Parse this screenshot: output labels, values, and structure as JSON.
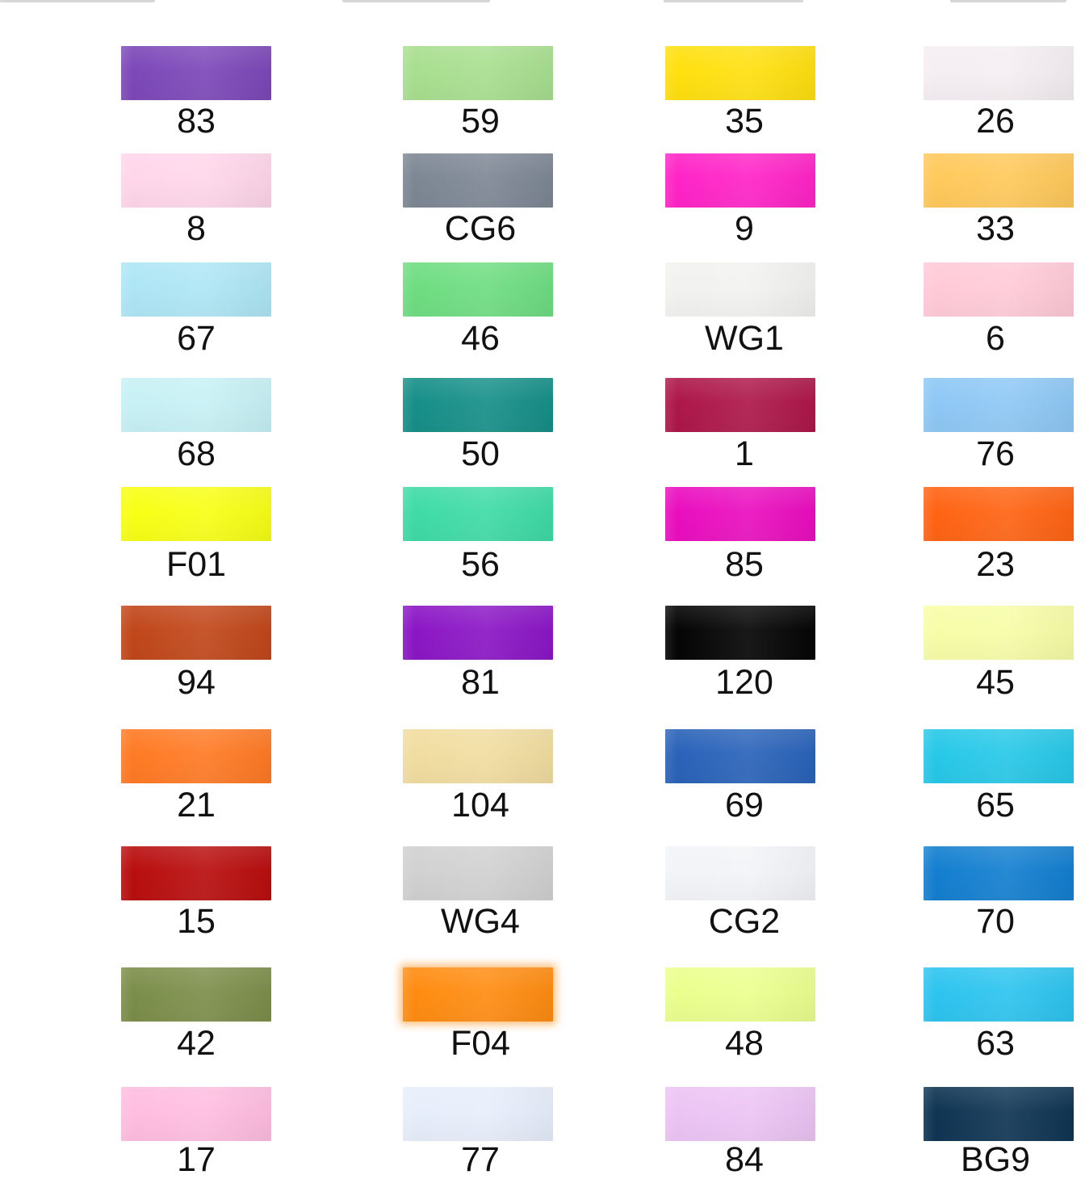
{
  "chart_data": {
    "type": "table",
    "columns": 4,
    "rows": 10,
    "swatches": [
      {
        "code": "83",
        "color": "#7c48b8"
      },
      {
        "code": "59",
        "color": "#a8df8f"
      },
      {
        "code": "35",
        "color": "#ffe00f"
      },
      {
        "code": "26",
        "color": "#f5eef2"
      },
      {
        "code": "8",
        "color": "#ffd6ea"
      },
      {
        "code": "CG6",
        "color": "#7d8794"
      },
      {
        "code": "9",
        "color": "#ff24c7"
      },
      {
        "code": "33",
        "color": "#ffc95b"
      },
      {
        "code": "67",
        "color": "#aee6f5"
      },
      {
        "code": "46",
        "color": "#6edd81"
      },
      {
        "code": "WG1",
        "color": "#f2f2f1"
      },
      {
        "code": "6",
        "color": "#ffcad7"
      },
      {
        "code": "68",
        "color": "#c7f1f5"
      },
      {
        "code": "50",
        "color": "#168f88"
      },
      {
        "code": "1",
        "color": "#ad1749"
      },
      {
        "code": "76",
        "color": "#8ec8f5"
      },
      {
        "code": "F01",
        "color": "#f8ff15"
      },
      {
        "code": "56",
        "color": "#3fdba7"
      },
      {
        "code": "85",
        "color": "#ea0ebf"
      },
      {
        "code": "23",
        "color": "#ff6413"
      },
      {
        "code": "94",
        "color": "#c1471a"
      },
      {
        "code": "81",
        "color": "#8b16c5"
      },
      {
        "code": "120",
        "color": "#050505"
      },
      {
        "code": "45",
        "color": "#f7fda7"
      },
      {
        "code": "21",
        "color": "#ff7a24"
      },
      {
        "code": "104",
        "color": "#f1dda0"
      },
      {
        "code": "69",
        "color": "#2a63b9"
      },
      {
        "code": "65",
        "color": "#27c8e8"
      },
      {
        "code": "15",
        "color": "#b90e0e"
      },
      {
        "code": "WG4",
        "color": "#d1d1d1"
      },
      {
        "code": "CG2",
        "color": "#f3f4f7"
      },
      {
        "code": "70",
        "color": "#137fd0"
      },
      {
        "code": "42",
        "color": "#7c8e4a"
      },
      {
        "code": "F04",
        "color": "#ff8c11"
      },
      {
        "code": "48",
        "color": "#ebff8e"
      },
      {
        "code": "63",
        "color": "#2dc4ef"
      },
      {
        "code": "17",
        "color": "#ffbde0"
      },
      {
        "code": "77",
        "color": "#e7eefb"
      },
      {
        "code": "84",
        "color": "#ecc4f4"
      },
      {
        "code": "BG9",
        "color": "#0f3553"
      }
    ]
  }
}
